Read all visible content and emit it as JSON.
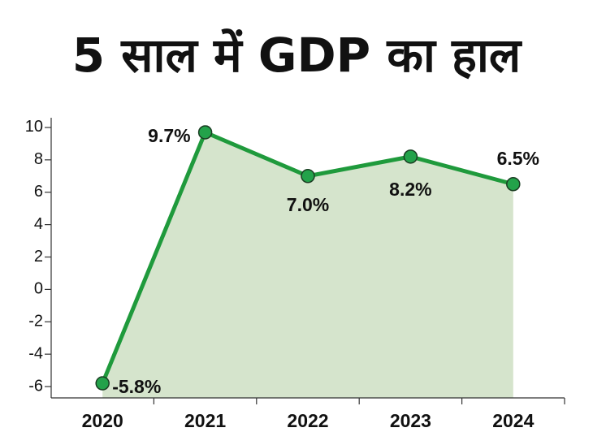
{
  "chart_data": {
    "type": "line",
    "title": "5 साल में GDP का हाल",
    "categories": [
      "2020",
      "2021",
      "2022",
      "2023",
      "2024"
    ],
    "series": [
      {
        "name": "GDP",
        "color": "#1f9a3c",
        "values": [
          -5.8,
          9.7,
          7.0,
          8.2,
          6.5
        ],
        "value_labels": [
          "-5.8%",
          "9.7%",
          "7.0%",
          "8.2%",
          "6.5%"
        ]
      }
    ],
    "ylim": [
      -6.7,
      10.6
    ],
    "yticks": [
      -6,
      -4,
      -2,
      0,
      2,
      4,
      6,
      8,
      10
    ],
    "area_color": "#d5e4cc",
    "grid": false
  }
}
